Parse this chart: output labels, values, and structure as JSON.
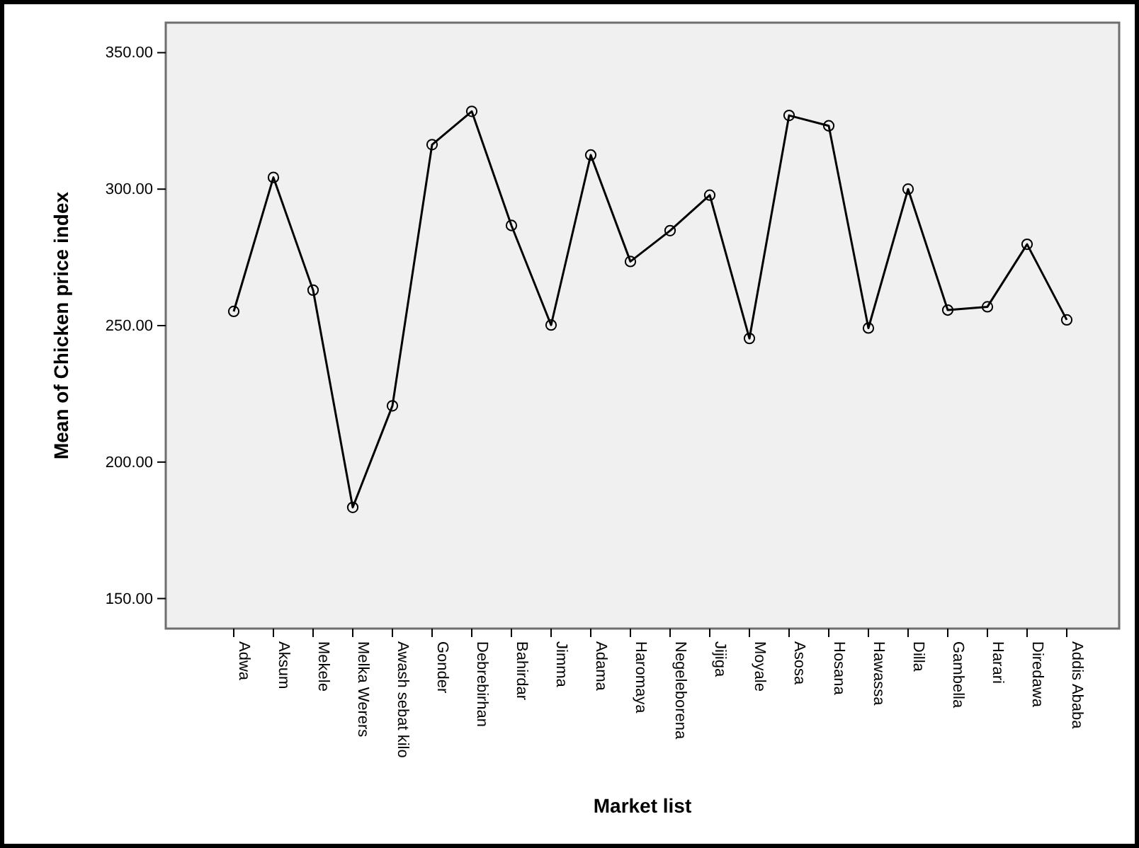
{
  "chart_data": {
    "type": "line",
    "xlabel": "Market list",
    "ylabel": "Mean of Chicken price index",
    "categories": [
      "Adwa",
      "Aksum",
      "Mekele",
      "Melka Werers",
      "Awash sebat kilo",
      "Gonder",
      "Debrebirhan",
      "Bahirdar",
      "Jimma",
      "Adama",
      "Haromaya",
      "Negeleborena",
      "Jijiga",
      "Moyale",
      "Asosa",
      "Hosana",
      "Hawassa",
      "Dilla",
      "Gambella",
      "Harari",
      "Diredawa",
      "Addis Ababa"
    ],
    "series": [
      {
        "color": "#000000",
        "values": [
          255.2,
          304.3,
          263.0,
          183.4,
          220.6,
          316.3,
          328.5,
          286.7,
          250.2,
          312.5,
          273.5,
          284.8,
          297.8,
          245.3,
          327.0,
          323.2,
          249.1,
          300.0,
          255.7,
          256.9,
          279.8,
          252.1
        ]
      }
    ],
    "ylim": [
      139,
      361
    ],
    "yticks": [
      {
        "value": 150,
        "label": "150.00"
      },
      {
        "value": 200,
        "label": "200.00"
      },
      {
        "value": 250,
        "label": "250.00"
      },
      {
        "value": 300,
        "label": "300.00"
      },
      {
        "value": 350,
        "label": "350.00"
      }
    ],
    "grid": false,
    "marker": "circle",
    "line_style": "solid"
  }
}
